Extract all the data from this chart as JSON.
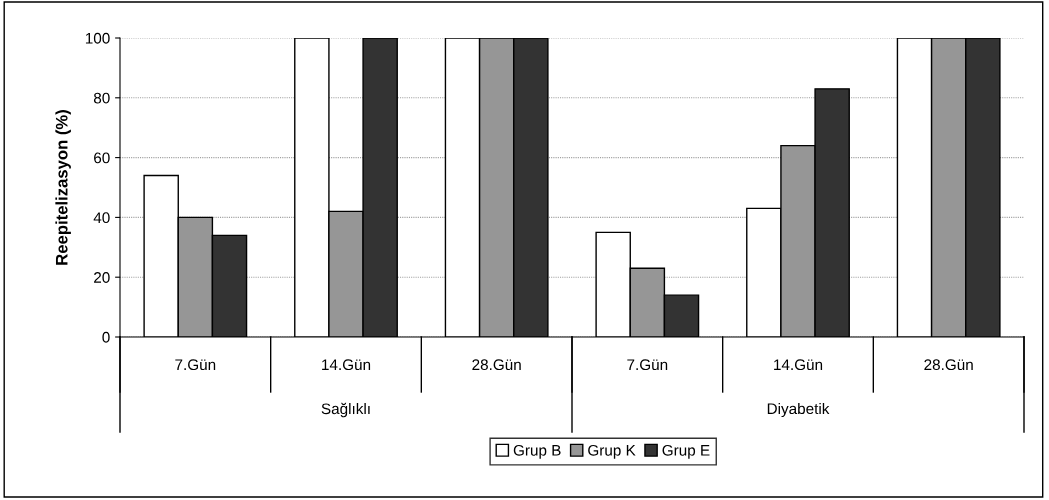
{
  "chart_data": {
    "type": "bar",
    "ylabel": "Reepitelizasyon (%)",
    "categories": [
      "7.Gün",
      "14.Gün",
      "28.Gün",
      "7.Gün",
      "14.Gün",
      "28.Gün"
    ],
    "series": [
      {
        "name": "Grup B",
        "color": "#ffffff",
        "values": [
          54,
          100,
          100,
          35,
          43,
          100
        ]
      },
      {
        "name": "Grup K",
        "color": "#969696",
        "values": [
          40,
          42,
          100,
          23,
          64,
          100
        ]
      },
      {
        "name": "Grup E",
        "color": "#333333",
        "values": [
          34,
          100,
          100,
          14,
          83,
          100
        ]
      }
    ],
    "annotations": [
      "Sağlıklı",
      "Diyabetik"
    ],
    "ylim": [
      0,
      100
    ],
    "yticks": [
      0,
      20,
      40,
      60,
      80,
      100
    ],
    "grid": "y",
    "legend": "bottom"
  }
}
